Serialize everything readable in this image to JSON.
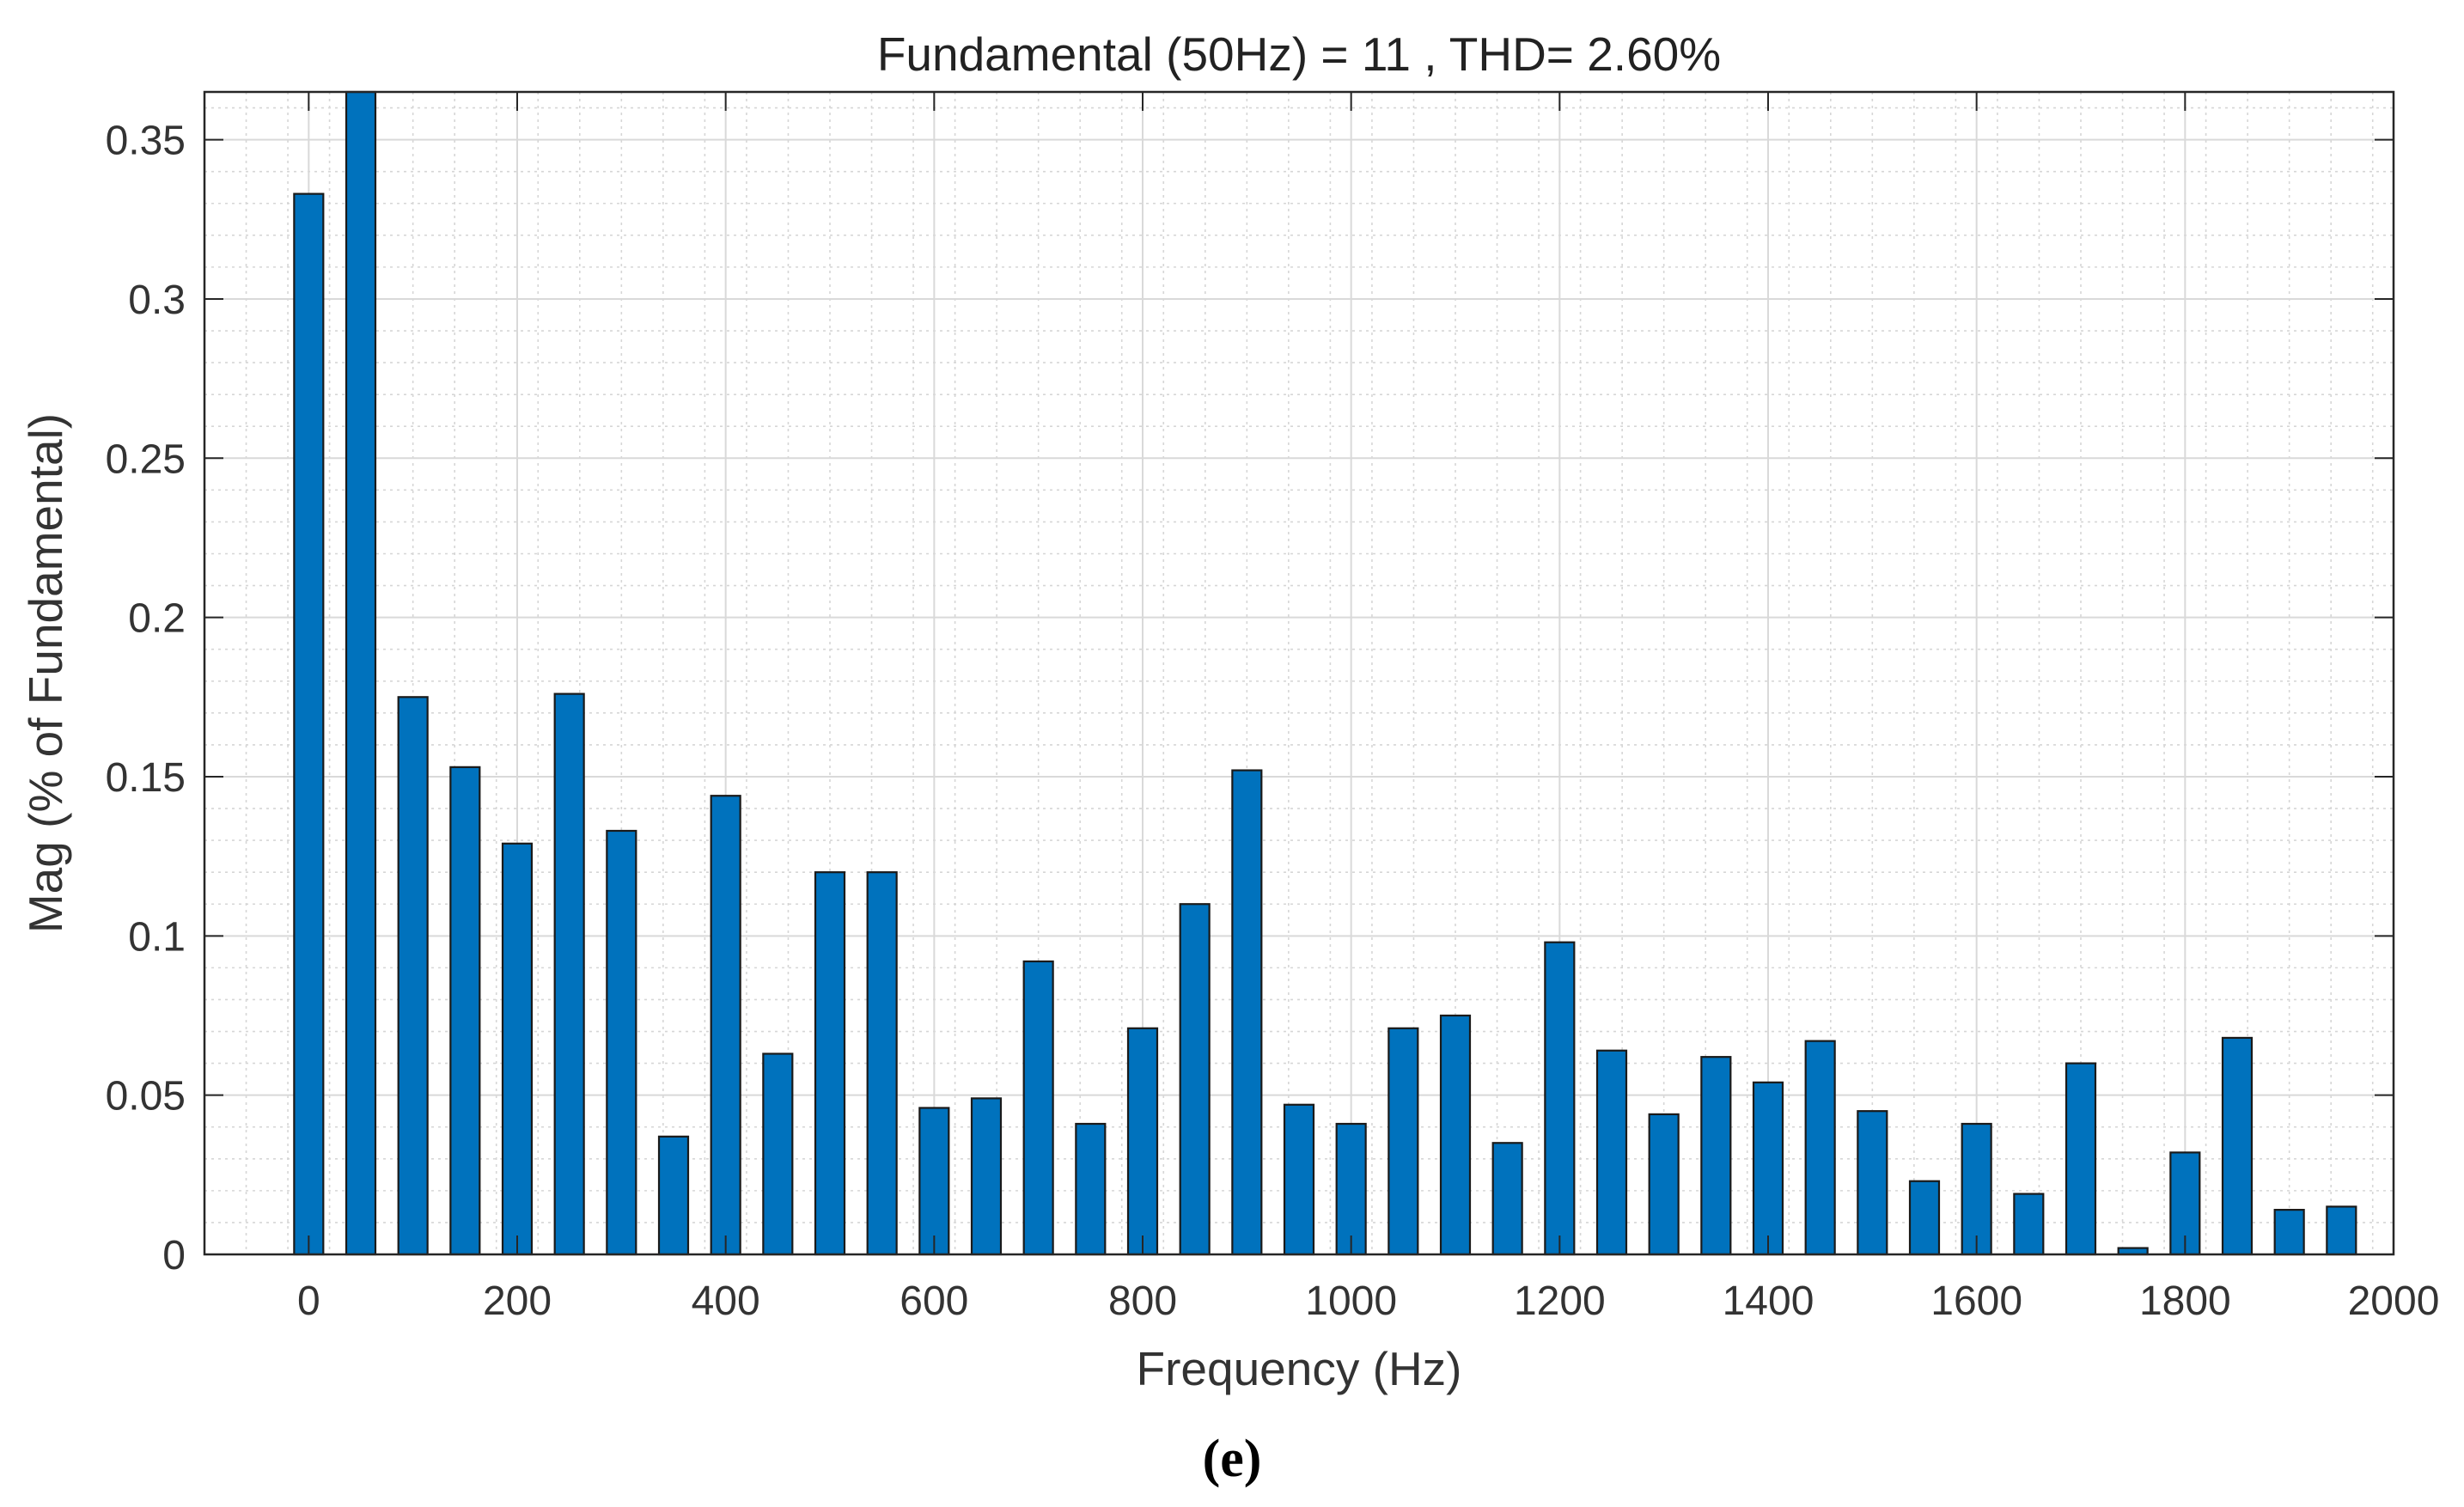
{
  "chart_data": {
    "type": "bar",
    "title": "Fundamental (50Hz) = 11 , THD= 2.60%",
    "xlabel": "Frequency (Hz)",
    "ylabel": "Mag (% of Fundamental)",
    "xlim": [
      -100,
      2000
    ],
    "ylim": [
      0,
      0.365
    ],
    "xticks": [
      "0",
      "200",
      "400",
      "600",
      "800",
      "1000",
      "1200",
      "1400",
      "1600",
      "1800",
      "2000"
    ],
    "xtick_values": [
      0,
      200,
      400,
      600,
      800,
      1000,
      1200,
      1400,
      1600,
      1800,
      2000
    ],
    "yticks": [
      "0",
      "0.05",
      "0.1",
      "0.15",
      "0.2",
      "0.25",
      "0.3",
      "0.35"
    ],
    "ytick_values": [
      0,
      0.05,
      0.1,
      0.15,
      0.2,
      0.25,
      0.3,
      0.35
    ],
    "grid": true,
    "minor_grid": true,
    "bar_color": "#0072BD",
    "x": [
      0,
      50,
      100,
      150,
      200,
      250,
      300,
      350,
      400,
      450,
      500,
      550,
      600,
      650,
      700,
      750,
      800,
      850,
      900,
      950,
      1000,
      1050,
      1100,
      1150,
      1200,
      1250,
      1300,
      1350,
      1400,
      1450,
      1500,
      1550,
      1600,
      1650,
      1700,
      1750,
      1800,
      1850,
      1900,
      1950
    ],
    "values": [
      0.333,
      0.365,
      0.175,
      0.153,
      0.129,
      0.176,
      0.133,
      0.037,
      0.144,
      0.063,
      0.12,
      0.12,
      0.046,
      0.049,
      0.092,
      0.041,
      0.071,
      0.11,
      0.152,
      0.047,
      0.041,
      0.071,
      0.075,
      0.035,
      0.098,
      0.064,
      0.044,
      0.062,
      0.054,
      0.067,
      0.045,
      0.023,
      0.041,
      0.019,
      0.06,
      0.002,
      0.032,
      0.068,
      0.014,
      0.015
    ]
  },
  "caption": "(e)"
}
